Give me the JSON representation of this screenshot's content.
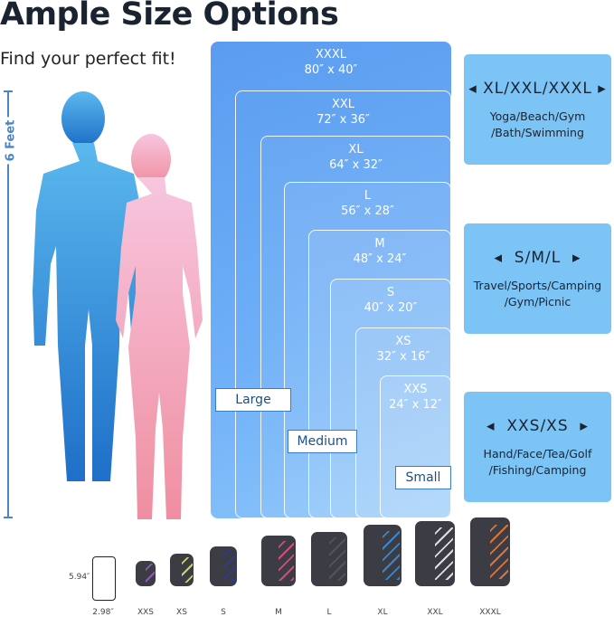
{
  "title": "Ample Size Options",
  "subtitle": "Find your perfect fit!",
  "height_label": "6 Feet",
  "sizes": [
    {
      "name": "XXXL",
      "dims": "80″ x 40″"
    },
    {
      "name": "XXL",
      "dims": "72″ x 36″"
    },
    {
      "name": "XL",
      "dims": "64″ x 32″"
    },
    {
      "name": "L",
      "dims": "56″ x 28″"
    },
    {
      "name": "M",
      "dims": "48″ x 24″"
    },
    {
      "name": "S",
      "dims": "40″ x 20″"
    },
    {
      "name": "XS",
      "dims": "32″ x 16″"
    },
    {
      "name": "XXS",
      "dims": "24″ x 12″"
    }
  ],
  "group_tags": [
    "Large",
    "Medium",
    "Small"
  ],
  "panels": [
    {
      "heading": "XL/XXL/XXXL",
      "uses": "Yoga/Beach/Gym /Bath/Swimming"
    },
    {
      "heading": "S/M/L",
      "uses": "Travel/Sports/Camping /Gym/Picnic"
    },
    {
      "heading": "XXS/XS",
      "uses": "Hand/Face/Tea/Golf /Fishing/Camping"
    }
  ],
  "phone": {
    "height": "5.94″",
    "width": "2.98″"
  },
  "towels": [
    {
      "label": "XXS",
      "color": "#9a5cc8"
    },
    {
      "label": "XS",
      "color": "#d8e86a"
    },
    {
      "label": "S",
      "color": "#2a3aa0"
    },
    {
      "label": "M",
      "color": "#e84a8a"
    },
    {
      "label": "L",
      "color": "#55565c"
    },
    {
      "label": "XL",
      "color": "#3a8ee0"
    },
    {
      "label": "XXL",
      "color": "#f0f0f0"
    },
    {
      "label": "XXXL",
      "color": "#f07a3a"
    }
  ]
}
